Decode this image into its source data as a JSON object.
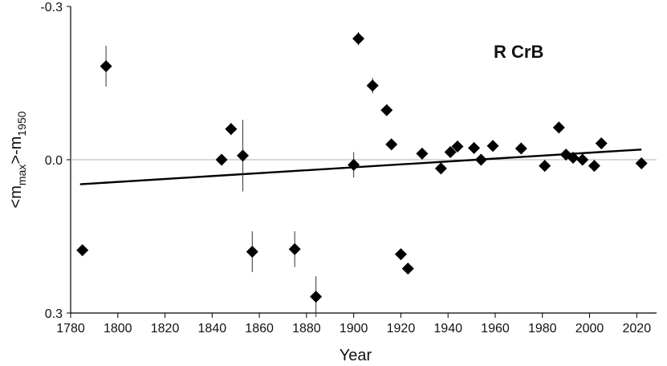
{
  "chart_data": {
    "type": "scatter",
    "annotation": "R CrB",
    "xlabel": "Year",
    "ylabel": "<m",
    "ylabel_sub": "max",
    "ylabel_mid": ">-m",
    "ylabel_sub2": "1950",
    "xlim": [
      1780,
      2025
    ],
    "ylim": [
      -0.3,
      0.3
    ],
    "y_inverted": true,
    "x_ticks": [
      1780,
      1800,
      1820,
      1840,
      1860,
      1880,
      1900,
      1920,
      1940,
      1960,
      1980,
      2000,
      2020
    ],
    "x_tick_labels": [
      "1780",
      "1800",
      "1820",
      "1840",
      "1860",
      "1880",
      "1900",
      "1920",
      "1940",
      "1960",
      "1980",
      "2000",
      "2020"
    ],
    "y_ticks": [
      -0.3,
      0.0,
      0.3
    ],
    "y_tick_labels": [
      "-0.3",
      "0.0",
      "0.3"
    ],
    "zero_line": true,
    "trend_line": {
      "x": [
        1784,
        2022
      ],
      "y": [
        0.048,
        -0.02
      ]
    },
    "marker_color": "#000000",
    "points": [
      {
        "x": 1785,
        "y": 0.177,
        "err": 0.01
      },
      {
        "x": 1795,
        "y": -0.183,
        "err": 0.04
      },
      {
        "x": 1844,
        "y": 0.0,
        "err": 0.008
      },
      {
        "x": 1848,
        "y": -0.06,
        "err": 0.012
      },
      {
        "x": 1853,
        "y": -0.008,
        "err": 0.07
      },
      {
        "x": 1857,
        "y": 0.18,
        "err": 0.04
      },
      {
        "x": 1875,
        "y": 0.175,
        "err": 0.035
      },
      {
        "x": 1884,
        "y": 0.268,
        "err": 0.04
      },
      {
        "x": 1900,
        "y": 0.01,
        "err": 0.025
      },
      {
        "x": 1902,
        "y": -0.237,
        "err": 0.013
      },
      {
        "x": 1908,
        "y": -0.145,
        "err": 0.015
      },
      {
        "x": 1914,
        "y": -0.097,
        "err": 0.005
      },
      {
        "x": 1916,
        "y": -0.03,
        "err": 0.005
      },
      {
        "x": 1920,
        "y": 0.185,
        "err": 0.005
      },
      {
        "x": 1923,
        "y": 0.213,
        "err": 0.005
      },
      {
        "x": 1929,
        "y": -0.012,
        "err": 0.004
      },
      {
        "x": 1937,
        "y": 0.017,
        "err": 0.004
      },
      {
        "x": 1941,
        "y": -0.015,
        "err": 0.004
      },
      {
        "x": 1944,
        "y": -0.026,
        "err": 0.004
      },
      {
        "x": 1951,
        "y": -0.023,
        "err": 0.004
      },
      {
        "x": 1954,
        "y": 0.0,
        "err": 0.004
      },
      {
        "x": 1959,
        "y": -0.027,
        "err": 0.004
      },
      {
        "x": 1971,
        "y": -0.022,
        "err": 0.004
      },
      {
        "x": 1981,
        "y": 0.012,
        "err": 0.004
      },
      {
        "x": 1987,
        "y": -0.063,
        "err": 0.004
      },
      {
        "x": 1990,
        "y": -0.01,
        "err": 0.004
      },
      {
        "x": 1993,
        "y": -0.004,
        "err": 0.004
      },
      {
        "x": 1997,
        "y": 0.0,
        "err": 0.004
      },
      {
        "x": 2002,
        "y": 0.012,
        "err": 0.004
      },
      {
        "x": 2005,
        "y": -0.032,
        "err": 0.004
      },
      {
        "x": 2022,
        "y": 0.007,
        "err": 0.004
      }
    ]
  }
}
